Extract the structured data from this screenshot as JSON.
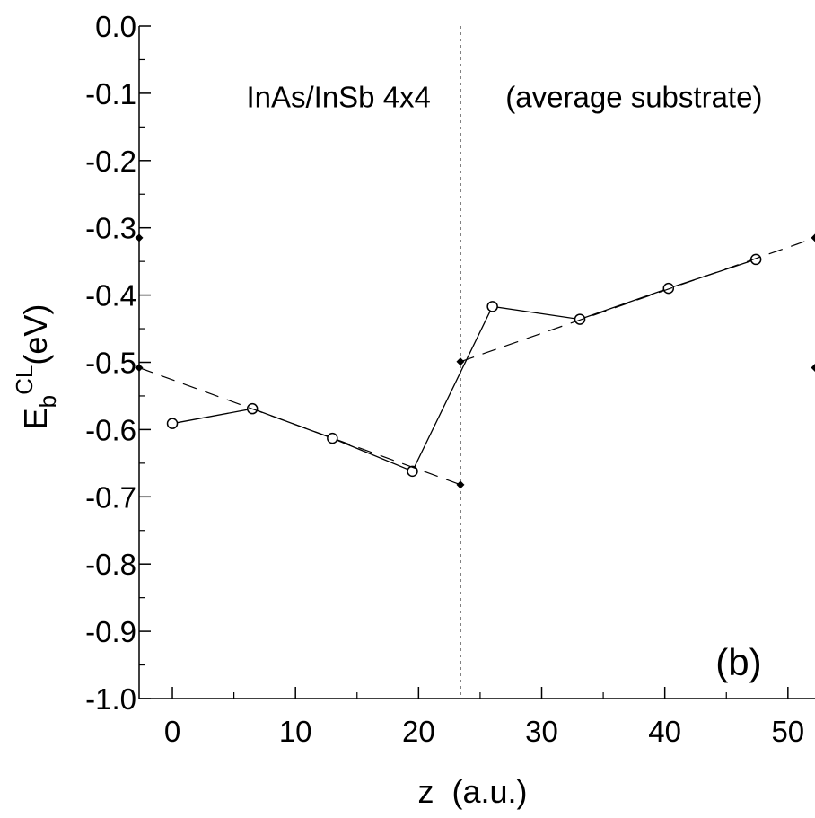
{
  "chart_data": {
    "type": "line",
    "xlabel": "z  (a.u.)",
    "ylabel": {
      "base": "E",
      "sub": "b",
      "sup": "CL",
      "unit": "(eV)"
    },
    "xlim": [
      -2.7,
      52.2
    ],
    "ylim": [
      -1.0,
      0.0
    ],
    "xticks": [
      0,
      10,
      20,
      30,
      40,
      50
    ],
    "yticks": [
      0.0,
      -0.1,
      -0.2,
      -0.3,
      -0.4,
      -0.5,
      -0.6,
      -0.7,
      -0.8,
      -0.9,
      -1.0
    ],
    "ytick_labels": [
      "0.0",
      "-0.1",
      "-0.2",
      "-0.3",
      "-0.4",
      "-0.5",
      "-0.6",
      "-0.7",
      "-0.8",
      "-0.9",
      "-1.0"
    ],
    "xtick_labels": [
      "0",
      "10",
      "20",
      "30",
      "40",
      "50"
    ],
    "annotations": [
      {
        "text": "InAs/InSb  4x4",
        "x": 13.5,
        "y": -0.105
      },
      {
        "text": "(average substrate)",
        "x": 37.5,
        "y": -0.105
      },
      {
        "text": "(b)",
        "x": 46,
        "y": -0.945
      }
    ],
    "interface_line_x": 23.4,
    "series": [
      {
        "style": "solid-circles",
        "x": [
          0.0,
          6.5,
          13.0,
          19.5,
          26.0,
          33.1,
          40.3,
          47.4
        ],
        "y": [
          -0.591,
          -0.569,
          -0.613,
          -0.662,
          -0.417,
          -0.436,
          -0.39,
          -0.347
        ]
      },
      {
        "style": "dashed",
        "x": [
          -2.7,
          23.4
        ],
        "y": [
          -0.508,
          -0.682
        ]
      },
      {
        "style": "dashed",
        "x": [
          23.4,
          52.2
        ],
        "y": [
          -0.499,
          -0.315
        ]
      }
    ],
    "markers": {
      "style": "diamond",
      "x": [
        -2.7,
        -2.7,
        23.4,
        23.4,
        52.2,
        52.2
      ],
      "y": [
        -0.315,
        -0.508,
        -0.499,
        -0.682,
        -0.315,
        -0.508
      ]
    }
  }
}
